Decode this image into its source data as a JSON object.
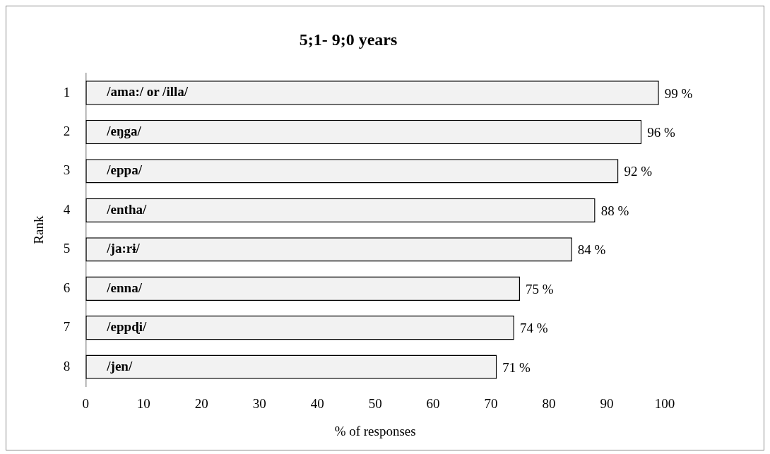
{
  "chart_data": {
    "type": "bar",
    "orientation": "horizontal",
    "title": "5;1- 9;0 years",
    "xlabel": "% of responses",
    "ylabel": "Rank",
    "categories": [
      "1",
      "2",
      "3",
      "4",
      "5",
      "6",
      "7",
      "8"
    ],
    "values": [
      99,
      96,
      92,
      88,
      84,
      75,
      74,
      71
    ],
    "value_labels": [
      "99 %",
      "96 %",
      "92 %",
      "88 %",
      "84 %",
      "75 %",
      "74 %",
      "71 %"
    ],
    "color": "#f2f2f2",
    "xlim": [
      0,
      100
    ],
    "xticks": [
      0,
      10,
      20,
      30,
      40,
      50,
      60,
      70,
      80,
      90,
      100
    ],
    "grid": false,
    "legend": false,
    "annotations": [
      "/ama:/ or /illa/",
      "/eŋga/",
      "/eppa/",
      "/entha/",
      "/ja:rɨ/",
      "/enna/",
      "/eppɖi/",
      "/jen/"
    ]
  }
}
